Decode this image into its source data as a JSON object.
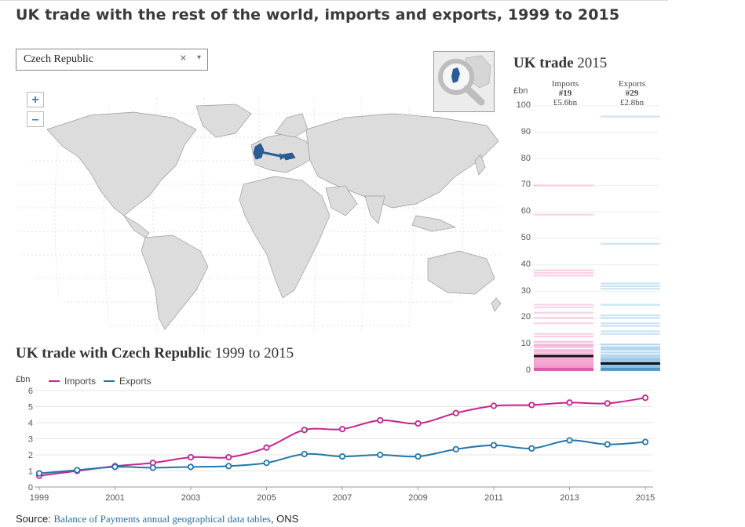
{
  "title": "UK trade with the rest of the world, imports and exports, 1999 to 2015",
  "selector": {
    "value": "Czech Republic",
    "clear_icon": "×",
    "arrow_icon": "▾"
  },
  "zoom": {
    "in": "+",
    "out": "–"
  },
  "uk_trade": {
    "title_bold": "UK trade",
    "year": "2015",
    "unit": "£bn",
    "imports": {
      "label": "Imports",
      "rank": "#19",
      "value": "£5.6bn"
    },
    "exports": {
      "label": "Exports",
      "rank": "#29",
      "value": "£2.8bn"
    },
    "axis_ticks": [
      100,
      90,
      80,
      70,
      60,
      50,
      40,
      30,
      20,
      10,
      0
    ],
    "axis_max": 100,
    "selected_imports": 5.6,
    "selected_exports": 2.8,
    "imports_other_countries": [
      70,
      59,
      38,
      37,
      36,
      25,
      24,
      22,
      20,
      18,
      14,
      13,
      11,
      10,
      9.5,
      9,
      8,
      7.5,
      7,
      6.5,
      6,
      5,
      4.5,
      4,
      3.5,
      3,
      2.6,
      2.2,
      2,
      1.8,
      1.5,
      1.2,
      1,
      0.8,
      0.6,
      0.4
    ],
    "exports_other_countries": [
      96,
      48,
      33,
      32,
      31,
      25,
      21,
      20,
      18,
      17,
      15,
      14,
      10,
      9,
      8.5,
      8,
      7,
      6,
      5.5,
      5,
      4.5,
      4,
      3.5,
      3.2,
      2.6,
      2.3,
      2,
      1.8,
      1.5,
      1.2,
      1,
      0.8,
      0.6,
      0.4
    ]
  },
  "colors": {
    "imports": "#c6238e",
    "exports": "#2277aa",
    "imports_light": "#f39ccd",
    "exports_light": "#8fc3e6",
    "map_land": "#dcdcdc",
    "map_highlight": "#2a5d96"
  },
  "chart_title": {
    "bold": "UK trade with Czech Republic",
    "years": "1999 to 2015"
  },
  "chart_data": {
    "type": "line",
    "title": "UK trade with Czech Republic 1999 to 2015",
    "ylabel": "£bn",
    "xlabel": "",
    "x": [
      1999,
      2000,
      2001,
      2002,
      2003,
      2004,
      2005,
      2006,
      2007,
      2008,
      2009,
      2010,
      2011,
      2012,
      2013,
      2014,
      2015
    ],
    "x_ticks": [
      "1999",
      "2001",
      "2003",
      "2005",
      "2007",
      "2009",
      "2011",
      "2013",
      "2015"
    ],
    "y_ticks": [
      "0",
      "1",
      "2",
      "3",
      "4",
      "5",
      "6"
    ],
    "ylim": [
      0,
      6
    ],
    "series": [
      {
        "name": "Imports",
        "values": [
          0.7,
          1.0,
          1.3,
          1.5,
          1.85,
          1.85,
          2.45,
          3.55,
          3.6,
          4.15,
          3.95,
          4.6,
          5.05,
          5.1,
          5.25,
          5.2,
          5.55
        ]
      },
      {
        "name": "Exports",
        "values": [
          0.85,
          1.05,
          1.25,
          1.2,
          1.25,
          1.3,
          1.5,
          2.05,
          1.9,
          2.0,
          1.9,
          2.35,
          2.6,
          2.4,
          2.9,
          2.65,
          2.8
        ]
      }
    ]
  },
  "source": {
    "label": "Source:",
    "link": "Balance of Payments annual geographical data tables",
    "suffix": ", ONS"
  }
}
